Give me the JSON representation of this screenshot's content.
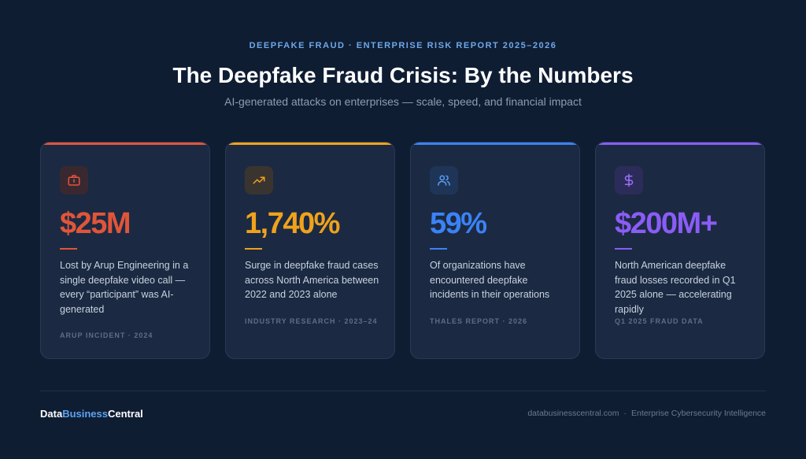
{
  "header": {
    "kicker": "DEEPFAKE FRAUD · ENTERPRISE RISK REPORT 2025–2026",
    "title": "The Deepfake Fraud Crisis: By the Numbers",
    "subtitle": "AI-generated attacks on enterprises — scale, speed, and financial impact"
  },
  "cards": [
    {
      "icon": "briefcase-icon",
      "accent_color": "#e0553a",
      "value": "$25M",
      "description": "Lost by Arup Engineering in a single deepfake video call — every “participant” was AI-generated",
      "source": "ARUP INCIDENT · 2024"
    },
    {
      "icon": "trending-up-icon",
      "accent_color": "#f0a21c",
      "value": "1,740%",
      "description": "Surge in deepfake fraud cases across North America between 2022 and 2023 alone",
      "source": "INDUSTRY RESEARCH · 2023–24"
    },
    {
      "icon": "users-icon",
      "accent_color": "#3b82f6",
      "value": "59%",
      "description": "Of organizations have encountered deepfake incidents in their operations",
      "source": "THALES REPORT · 2026"
    },
    {
      "icon": "dollar-icon",
      "accent_color": "#8b5cf6",
      "value": "$200M+",
      "description": "North American deepfake fraud losses recorded in Q1 2025 alone — accelerating rapidly",
      "source": "Q1 2025 FRAUD DATA"
    }
  ],
  "footer": {
    "brand_part1": "Data",
    "brand_part2": "Business",
    "brand_part3": "Central",
    "website": "databusinesscentral.com",
    "separator": "·",
    "tagline": "Enterprise Cybersecurity Intelligence"
  }
}
